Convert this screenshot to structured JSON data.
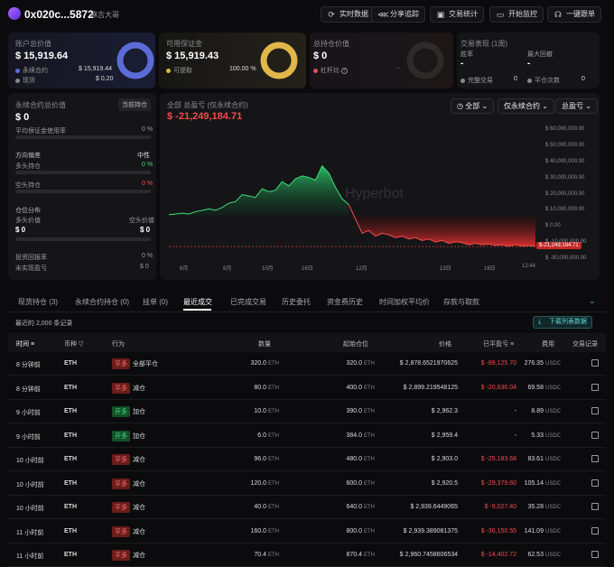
{
  "header": {
    "address": "0x020c...5872",
    "alias": "麻吉大哥",
    "buttons": [
      {
        "label": "实时数据",
        "icon": "refresh-icon"
      },
      {
        "label": "分享追踪",
        "icon": "share-icon"
      },
      {
        "label": "交易统计",
        "icon": "stats-icon"
      },
      {
        "label": "开始监控",
        "icon": "monitor-icon"
      },
      {
        "label": "一键跟单",
        "icon": "copy-trade-icon"
      }
    ]
  },
  "cards": {
    "account": {
      "title": "账户总价值",
      "value": "$ 15,919.64",
      "perp_label": "永续合约",
      "perp_value": "$ 15,919.44",
      "spot_label": "现货",
      "spot_value": "$ 0.20",
      "color": "#5b6cd9"
    },
    "margin": {
      "title": "可用保证金",
      "value": "$ 15,919.43",
      "withdraw_label": "可提取",
      "withdraw_pct": "100.00 %",
      "color": "#e0b84a"
    },
    "position": {
      "title": "总持仓价值",
      "value": "$ 0",
      "leverage_label": "杠杆比",
      "leverage_value": "-"
    },
    "performance": {
      "title": "交易表现 (1周)",
      "winrate_label": "胜率",
      "winrate_value": "-",
      "maxdd_label": "最大回撤",
      "maxdd_value": "-",
      "closed_label": "完整交易",
      "closed_value": "0",
      "flat_label": "平仓次数",
      "flat_value": "0"
    }
  },
  "perp": {
    "title": "永续合约总价值",
    "badge": "当前持仓",
    "value": "$ 0",
    "margin_usage_label": "平均保证金使用率",
    "margin_usage_value": "0 %",
    "bias_label": "方向偏差",
    "bias_value": "中性",
    "long_label": "多头持仓",
    "long_value": "0 %",
    "short_label": "空头持仓",
    "short_value": "0 %",
    "dist_label": "仓位分布",
    "long_val_label": "多头价值",
    "short_val_label": "空头价值",
    "long_val": "$ 0",
    "short_val": "$ 0",
    "roi_label": "投资回报率",
    "roi_value": "0 %",
    "unrealized_label": "未实现盈亏",
    "unrealized_value": "$ 0"
  },
  "chart_panel": {
    "title": "全部 总盈亏 (仅永续合约)",
    "value": "$ -21,249,184.71",
    "dd_all": "全部",
    "dd_perp": "仅永续合约",
    "dd_pnl": "总盈亏",
    "watermark": "Hyperbot",
    "last_label": "-21,249,184.71"
  },
  "chart_data": {
    "type": "area",
    "y_ticks": [
      "$ 60,000,000.00",
      "$ 50,000,000.00",
      "$ 40,000,000.00",
      "$ 30,000,000.00",
      "$ 20,000,000.00",
      "$ 10,000,000.00",
      "$ 0.00",
      "$ -10,000,000.00",
      "$ -30,000,000.00"
    ],
    "x_ticks": [
      "6月",
      "8月",
      "10月",
      "16日",
      "12月",
      "13日",
      "16日",
      "12:44"
    ],
    "ylim": [
      -30000000,
      60000000
    ],
    "values": [
      1000000,
      1500000,
      2000000,
      1500000,
      3000000,
      4000000,
      5000000,
      4000000,
      6000000,
      9000000,
      10000000,
      15000000,
      14000000,
      13000000,
      19000000,
      17000000,
      18000000,
      24000000,
      21000000,
      26000000,
      28000000,
      27000000,
      25000000,
      35000000,
      30000000,
      20000000,
      12000000,
      8000000,
      -2000000,
      -12000000,
      -10000000,
      -14000000,
      -12000000,
      -13000000,
      -15000000,
      -14000000,
      -16000000,
      -15000000,
      -17000000,
      -16000000,
      -18000000,
      -17000000,
      -19000000,
      -18000000,
      -18500000,
      -20000000,
      -19000000,
      -20000000,
      -19500000,
      -20500000,
      -20000000,
      -21000000,
      -20000000,
      -21000000,
      -20500000,
      -21249184.71
    ]
  },
  "tabs": [
    "现货持仓 (3)",
    "永续合约持仓 (0)",
    "挂单 (0)",
    "最近成交",
    "已完成交易",
    "历史委托",
    "资金费历史",
    "时间加权平均价",
    "存款与取款"
  ],
  "active_tab": 3,
  "table": {
    "caption": "最近的 2,000 条记录",
    "download": "下载列表数据",
    "headers": [
      "时间",
      "币种",
      "行为",
      "数量",
      "起始仓位",
      "价格",
      "已平盈亏",
      "费用",
      "交易记录"
    ],
    "rows": [
      {
        "time": "8 分钟前",
        "coin": "ETH",
        "tag": "平多",
        "side": "short",
        "action": "全部平仓",
        "qty": "320.0",
        "start": "320.0",
        "price": "$ 2,878.6521970625",
        "pnl": "$ -89,125.70",
        "fee": "276.35"
      },
      {
        "time": "8 分钟前",
        "coin": "ETH",
        "tag": "平多",
        "side": "short",
        "action": "减仓",
        "qty": "80.0",
        "start": "400.0",
        "price": "$ 2,899.219548125",
        "pnl": "$ -20,636.04",
        "fee": "69.58"
      },
      {
        "time": "9 小时前",
        "coin": "ETH",
        "tag": "开多",
        "side": "long",
        "action": "加仓",
        "qty": "10.0",
        "start": "390.0",
        "price": "$ 2,962.3",
        "pnl": "-",
        "fee": "8.89"
      },
      {
        "time": "9 小时前",
        "coin": "ETH",
        "tag": "开多",
        "side": "long",
        "action": "加仓",
        "qty": "6.0",
        "start": "384.0",
        "price": "$ 2,959.4",
        "pnl": "-",
        "fee": "5.33"
      },
      {
        "time": "10 小时前",
        "coin": "ETH",
        "tag": "平多",
        "side": "short",
        "action": "减仓",
        "qty": "96.0",
        "start": "480.0",
        "price": "$ 2,903.0",
        "pnl": "$ -25,183.68",
        "fee": "83.61"
      },
      {
        "time": "10 小时前",
        "coin": "ETH",
        "tag": "平多",
        "side": "short",
        "action": "减仓",
        "qty": "120.0",
        "start": "600.0",
        "price": "$ 2,920.5",
        "pnl": "$ -29,379.60",
        "fee": "105.14"
      },
      {
        "time": "10 小时前",
        "coin": "ETH",
        "tag": "平多",
        "side": "short",
        "action": "减仓",
        "qty": "40.0",
        "start": "640.0",
        "price": "$ 2,939.6449065",
        "pnl": "$ -9,027.40",
        "fee": "35.28"
      },
      {
        "time": "11 小时前",
        "coin": "ETH",
        "tag": "平多",
        "side": "short",
        "action": "减仓",
        "qty": "160.0",
        "start": "800.0",
        "price": "$ 2,939.389081375",
        "pnl": "$ -36,150.55",
        "fee": "141.09"
      },
      {
        "time": "11 小时前",
        "coin": "ETH",
        "tag": "平多",
        "side": "short",
        "action": "减仓",
        "qty": "70.4",
        "start": "870.4",
        "price": "$ 2,960.7458606534",
        "pnl": "$ -14,402.72",
        "fee": "62.53"
      }
    ],
    "unit_eth": "ETH",
    "unit_usdc": "USDC"
  }
}
